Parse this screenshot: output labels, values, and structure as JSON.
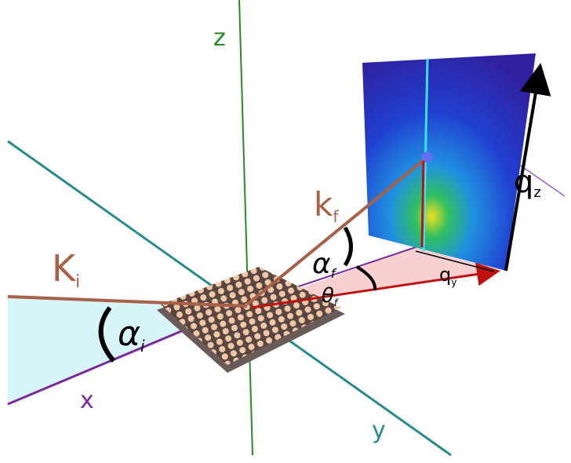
{
  "axes": {
    "x": "x",
    "y": "y",
    "z": "z"
  },
  "vectors": {
    "ki": {
      "symbol": "K",
      "subscript": "i"
    },
    "kf": {
      "symbol": "k",
      "subscript": "f"
    },
    "qz": {
      "symbol": "q",
      "subscript": "z"
    },
    "qy": {
      "symbol": "q",
      "subscript": "y"
    }
  },
  "angles": {
    "alpha_i": {
      "symbol": "α",
      "subscript": "i"
    },
    "alpha_f": {
      "symbol": "α",
      "subscript": "f"
    },
    "theta_f": {
      "symbol": "θ",
      "subscript": "f"
    }
  }
}
